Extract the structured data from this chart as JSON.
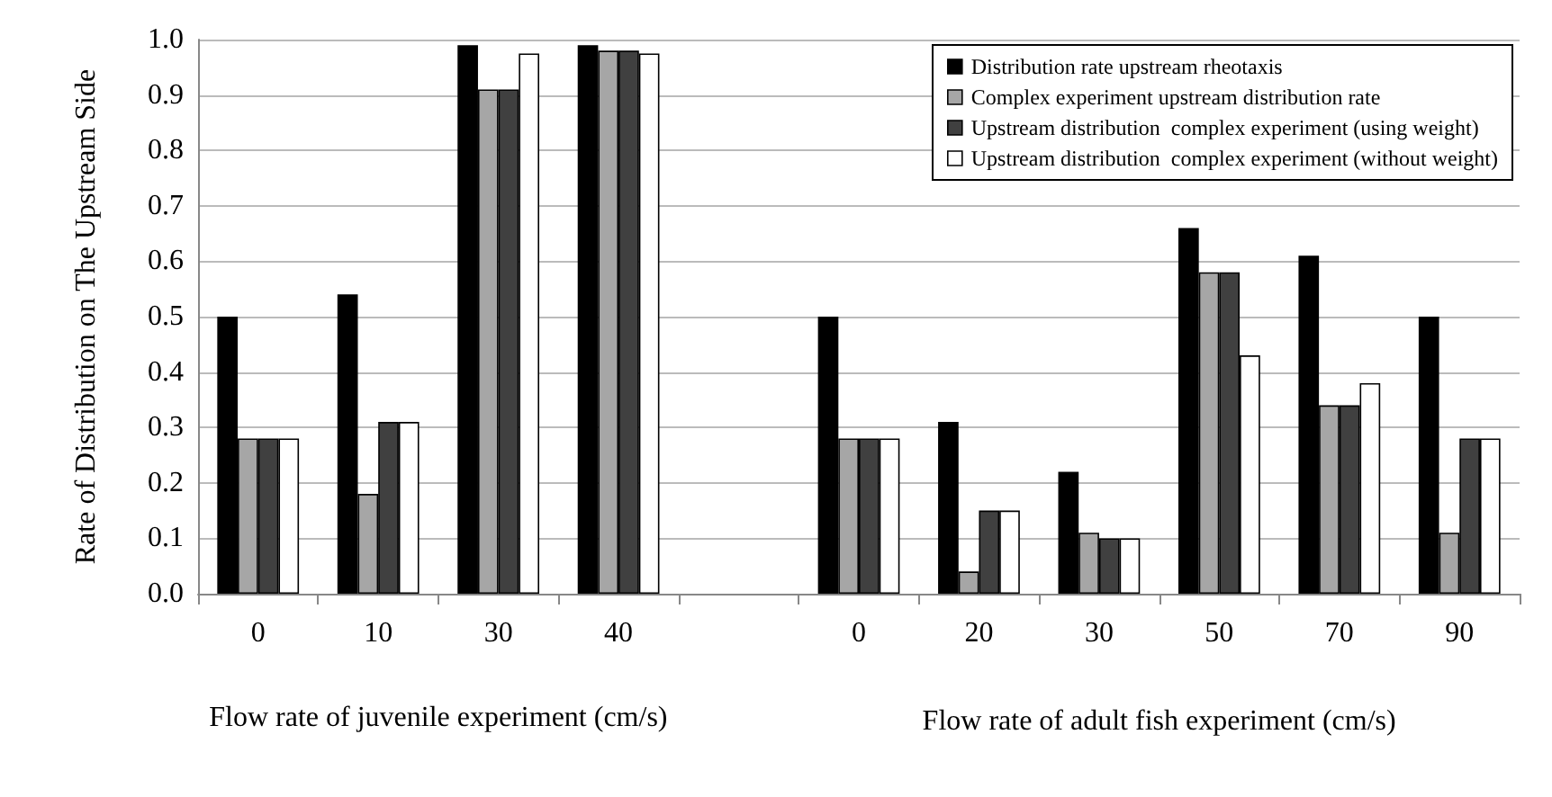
{
  "chart_data": {
    "type": "bar",
    "ylabel": "Rate of Distribution on The Upstream Side",
    "xlabel": "Flow rate of juvenile experiment (cm/s)",
    "annotations": [
      "Flow rate of adult fish experiment (cm/s)"
    ],
    "categories": [
      "0",
      "10",
      "30",
      "40",
      null,
      "0",
      "20",
      "30",
      "50",
      "70",
      "90"
    ],
    "series": [
      {
        "name": "Distribution rate upstream rheotaxis",
        "color": "#000000",
        "values": [
          0.5,
          0.54,
          0.99,
          0.99,
          null,
          0.5,
          0.31,
          0.22,
          0.66,
          0.61,
          0.5
        ]
      },
      {
        "name": "Complex experiment upstream distribution rate",
        "color": "#a6a6a6",
        "values": [
          0.28,
          0.18,
          0.91,
          0.98,
          null,
          0.28,
          0.04,
          0.11,
          0.58,
          0.34,
          0.11
        ]
      },
      {
        "name": "Upstream distribution  complex experiment (using weight)",
        "color": "#404040",
        "values": [
          0.28,
          0.31,
          0.91,
          0.98,
          null,
          0.28,
          0.15,
          0.1,
          0.58,
          0.34,
          0.28
        ]
      },
      {
        "name": "Upstream distribution  complex experiment (without weight)",
        "color": "#ffffff",
        "values": [
          0.28,
          0.31,
          0.975,
          0.975,
          null,
          0.28,
          0.15,
          0.1,
          0.43,
          0.38,
          0.28
        ]
      }
    ],
    "ylim": [
      0,
      1
    ],
    "yticks": [
      {
        "value": 0,
        "label": "0.0"
      },
      0.1,
      0.2,
      0.3,
      0.4,
      0.5,
      0.6,
      0.7,
      0.8,
      0.9,
      {
        "value": 1,
        "label": "1.0"
      }
    ],
    "grid": "y",
    "legend": "top right"
  }
}
